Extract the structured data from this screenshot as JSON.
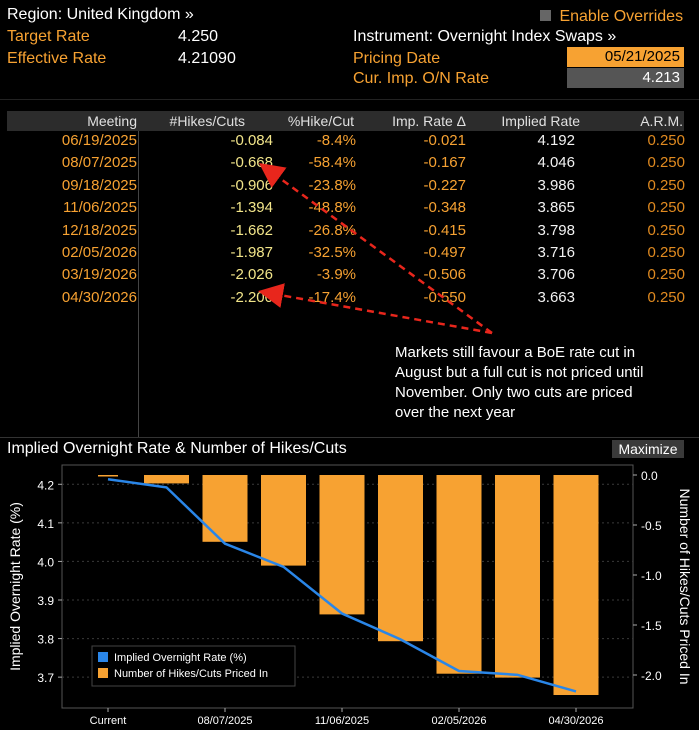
{
  "header": {
    "region": "Region: United Kingdom »",
    "target_rate_label": "Target Rate",
    "target_rate_value": "4.250",
    "effective_rate_label": "Effective Rate",
    "effective_rate_value": "4.21090",
    "enable_overrides": "Enable Overrides",
    "instrument": "Instrument: Overnight Index Swaps »",
    "pricing_date_label": "Pricing Date",
    "pricing_date_value": "05/21/2025",
    "cur_imp_label": "Cur. Imp. O/N Rate",
    "cur_imp_value": "4.213"
  },
  "table": {
    "columns": [
      "Meeting",
      "#Hikes/Cuts",
      "%Hike/Cut",
      "Imp. Rate Δ",
      "Implied Rate",
      "A.R.M."
    ],
    "rows": [
      [
        "06/19/2025",
        "-0.084",
        "-8.4%",
        "-0.021",
        "4.192",
        "0.250"
      ],
      [
        "08/07/2025",
        "-0.668",
        "-58.4%",
        "-0.167",
        "4.046",
        "0.250"
      ],
      [
        "09/18/2025",
        "-0.906",
        "-23.8%",
        "-0.227",
        "3.986",
        "0.250"
      ],
      [
        "11/06/2025",
        "-1.394",
        "-48.8%",
        "-0.348",
        "3.865",
        "0.250"
      ],
      [
        "12/18/2025",
        "-1.662",
        "-26.8%",
        "-0.415",
        "3.798",
        "0.250"
      ],
      [
        "02/05/2026",
        "-1.987",
        "-32.5%",
        "-0.497",
        "3.716",
        "0.250"
      ],
      [
        "03/19/2026",
        "-2.026",
        "-3.9%",
        "-0.506",
        "3.706",
        "0.250"
      ],
      [
        "04/30/2026",
        "-2.200",
        "-17.4%",
        "-0.550",
        "3.663",
        "0.250"
      ]
    ]
  },
  "annotation": "Markets still favour a BoE rate cut in August but a full cut is not priced until November. Only two cuts are priced over the next year",
  "chart_title": "Implied Overnight Rate & Number of Hikes/Cuts",
  "maximize": "Maximize",
  "chart_data": {
    "type": "bar",
    "categories": [
      "Current",
      "06/19/2025",
      "08/07/2025",
      "09/18/2025",
      "11/06/2025",
      "12/18/2025",
      "02/05/2026",
      "03/19/2026",
      "04/30/2026"
    ],
    "x_tick_labels": [
      "Current",
      "08/07/2025",
      "11/06/2025",
      "02/05/2026",
      "04/30/2026"
    ],
    "series": [
      {
        "name": "Implied Overnight Rate (%)",
        "type": "line",
        "axis": "left",
        "color": "#2a86e8",
        "values": [
          4.213,
          4.192,
          4.046,
          3.986,
          3.865,
          3.798,
          3.716,
          3.706,
          3.663
        ]
      },
      {
        "name": "Number of Hikes/Cuts Priced In",
        "type": "bar",
        "axis": "right",
        "color": "#f7a232",
        "values": [
          0,
          -0.084,
          -0.668,
          -0.906,
          -1.394,
          -1.662,
          -1.987,
          -2.026,
          -2.2
        ]
      }
    ],
    "ylabel": "Implied Overnight Rate (%)",
    "y2label": "Number of Hikes/Cuts Priced In",
    "ylim": [
      3.62,
      4.25
    ],
    "y2lim": [
      -2.33,
      0.1
    ],
    "y_ticks": [
      3.7,
      3.8,
      3.9,
      4.0,
      4.1,
      4.2
    ],
    "y2_ticks": [
      -2.0,
      -1.5,
      -1.0,
      -0.5,
      0.0
    ],
    "legend_position": "bottom-left",
    "grid": true
  },
  "colors": {
    "accent": "#f7a232",
    "line": "#2a86e8",
    "background": "#000000"
  }
}
